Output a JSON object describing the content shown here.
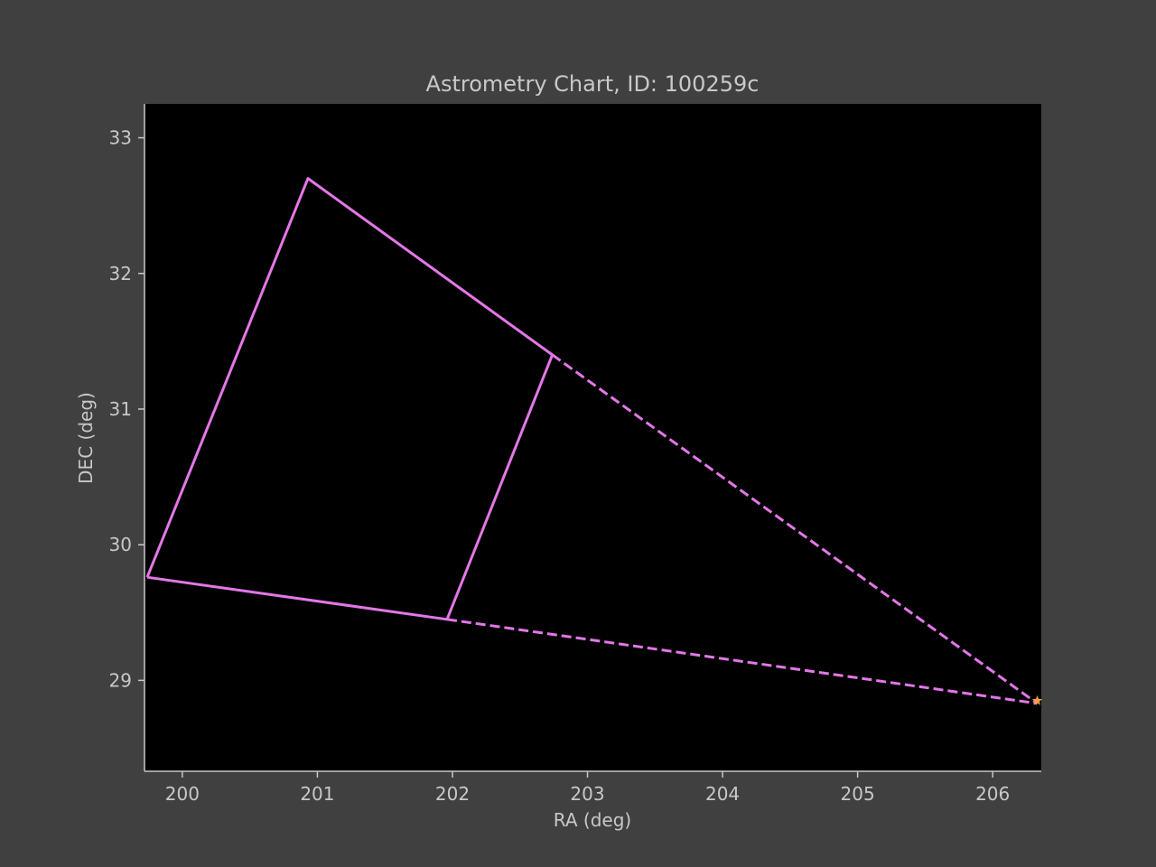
{
  "chart_data": {
    "type": "line",
    "title": "Astrometry Chart, ID: 100259c",
    "xlabel": "RA (deg)",
    "ylabel": "DEC (deg)",
    "xlim": [
      199.72,
      206.36
    ],
    "ylim": [
      28.33,
      33.25
    ],
    "xticks": [
      200,
      201,
      202,
      203,
      204,
      205,
      206
    ],
    "yticks": [
      29,
      30,
      31,
      32,
      33
    ],
    "grid": false,
    "background_color": "#000000",
    "figure_color": "#404040",
    "series": [
      {
        "style": "solid",
        "color": "#e377e8",
        "points": [
          {
            "x": 199.74,
            "y": 29.76
          },
          {
            "x": 200.93,
            "y": 32.7
          },
          {
            "x": 202.74,
            "y": 31.4
          },
          {
            "x": 201.96,
            "y": 29.45
          },
          {
            "x": 199.74,
            "y": 29.76
          }
        ]
      },
      {
        "style": "dashed",
        "color": "#e377e8",
        "points": [
          {
            "x": 202.74,
            "y": 31.4
          },
          {
            "x": 206.33,
            "y": 28.83
          }
        ]
      },
      {
        "style": "dashed",
        "color": "#e377e8",
        "points": [
          {
            "x": 201.96,
            "y": 29.45
          },
          {
            "x": 206.33,
            "y": 28.83
          }
        ]
      }
    ],
    "markers": [
      {
        "x": 206.33,
        "y": 28.85,
        "shape": "star",
        "color": "#f5a040"
      }
    ]
  }
}
